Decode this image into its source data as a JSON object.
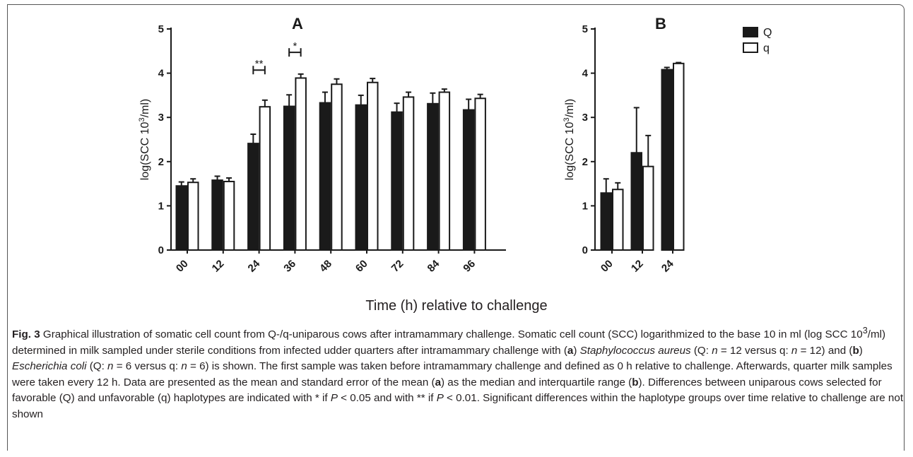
{
  "chart_data": [
    {
      "type": "bar",
      "title": "A",
      "ylabel_main": "log(SCC 10",
      "ylabel_sup": "3",
      "ylabel_tail": "/ml)",
      "ylim": [
        0,
        5
      ],
      "yticks": [
        "0",
        "1",
        "2",
        "3",
        "4",
        "5"
      ],
      "categories": [
        "00",
        "12",
        "24",
        "36",
        "48",
        "60",
        "72",
        "84",
        "96"
      ],
      "series": [
        {
          "name": "Q",
          "color": "#1a1a1a",
          "values": [
            1.45,
            1.58,
            2.41,
            3.25,
            3.33,
            3.28,
            3.12,
            3.31,
            3.17
          ],
          "error": [
            0.09,
            0.09,
            0.21,
            0.26,
            0.24,
            0.22,
            0.2,
            0.24,
            0.24
          ]
        },
        {
          "name": "q",
          "color": "#ffffff",
          "values": [
            1.53,
            1.55,
            3.24,
            3.89,
            3.75,
            3.79,
            3.46,
            3.57,
            3.43
          ],
          "error": [
            0.08,
            0.08,
            0.15,
            0.09,
            0.12,
            0.09,
            0.11,
            0.07,
            0.09
          ]
        }
      ],
      "annotations": [
        {
          "text": "**",
          "category": "24",
          "y": 4.07
        },
        {
          "text": "*",
          "category": "36",
          "y": 4.47
        }
      ]
    },
    {
      "type": "bar",
      "title": "B",
      "ylabel_main": "log(SCC 10",
      "ylabel_sup": "3",
      "ylabel_tail": "/ml)",
      "ylim": [
        0,
        5
      ],
      "yticks": [
        "0",
        "1",
        "2",
        "3",
        "4",
        "5"
      ],
      "categories": [
        "00",
        "12",
        "24"
      ],
      "legend": {
        "placement": "top-right",
        "entries": [
          "Q",
          "q"
        ]
      },
      "series": [
        {
          "name": "Q",
          "color": "#1a1a1a",
          "values": [
            1.29,
            2.2,
            4.08
          ],
          "error": [
            0.32,
            1.02,
            0.05
          ]
        },
        {
          "name": "q",
          "color": "#ffffff",
          "values": [
            1.37,
            1.89,
            4.22
          ],
          "error": [
            0.15,
            0.7,
            0.02
          ]
        }
      ]
    }
  ],
  "shared_xlabel": "Time (h) relative to challenge",
  "caption": {
    "fig_label": "Fig. 3",
    "text_1": " Graphical illustration of somatic cell count from Q-/q-uniparous cows after intramammary challenge. Somatic cell count (SCC) logarithmized to the base 10 in ml (log SCC 10",
    "sup_1": "3",
    "text_2": "/ml) determined in milk sampled under sterile conditions from infected udder quarters after intramammary challenge with (",
    "a1": "a",
    "text_3": ") ",
    "org_a": "Staphylococcus aureus",
    "text_4": " (Q: ",
    "n1": "n",
    "text_5": " = 12 versus q: ",
    "n2": "n",
    "text_6": " = 12) and (",
    "b1": "b",
    "text_7": ") ",
    "org_b": "Escherichia coli",
    "text_8": " (Q: ",
    "n3": "n",
    "text_9": " = 6 versus q: ",
    "n4": "n",
    "text_10": " = 6) is shown. The first sample was taken before intramammary challenge and defined as 0 h relative to challenge. Afterwards, quarter milk samples were taken every 12 h. Data are presented as the mean and standard error of the mean (",
    "a2": "a",
    "text_11": ") as the median and interquartile range (",
    "b2": "b",
    "text_12": "). Differences between uniparous cows selected for favorable (Q) and unfavorable (q) haplotypes are indicated with * if ",
    "p1": "P",
    "text_13": " < 0.05 and with ** if ",
    "p2": "P",
    "text_14": " < 0.01. Significant differences within the haplotype groups over time relative to challenge are not shown"
  }
}
